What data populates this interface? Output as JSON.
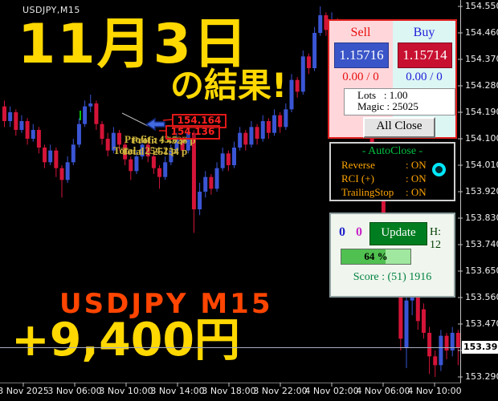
{
  "window": {
    "title": "USDJPY,M15"
  },
  "overlays": {
    "headline_line1": "11月3日",
    "headline_line2": "の結果!",
    "symbol_banner": "USDJPY M15",
    "profit_banner": "+9,400円",
    "profit_text_a": "Profit : 43.8 p",
    "profit_text_b": "Profit : 4328 p",
    "total_text_a": "Total : 254.2 p",
    "total_text_b": "Total : 25154 p",
    "order_price_upper": "154.164",
    "order_price_lower": "154.136"
  },
  "trade_panel": {
    "sell_label": "Sell",
    "buy_label": "Buy",
    "sell_price": "1.15716",
    "buy_price": "1.15714",
    "sell_stats": "0.00 / 0",
    "buy_stats": "0.00 / 0",
    "lots_rows": [
      {
        "label": "Lots",
        "value_text": "   : 1.00"
      },
      {
        "label": "Magic",
        "value_text": " : 25025"
      }
    ],
    "all_close_label": "All Close"
  },
  "autoclose_panel": {
    "title": "- AutoClose -",
    "rows": [
      {
        "label": "Reverse",
        "value_text": ": ON"
      },
      {
        "label": "RCI (+)",
        "value_text": ": ON"
      },
      {
        "label": "TrailingStop",
        "value_text": ": ON"
      }
    ]
  },
  "update_panel": {
    "count_blue": "0",
    "count_magenta": "0",
    "update_label": "Update",
    "h_label": "H: 12",
    "progress_text": "64 %",
    "progress_pct": 64,
    "score_text": "Score : (51) 1916"
  },
  "price_axis": {
    "labels": [
      "154.550",
      "154.460",
      "154.370",
      "154.280",
      "154.190",
      "154.100",
      "154.010",
      "153.920",
      "153.830",
      "153.740",
      "153.650",
      "153.560",
      "153.470",
      "153.380",
      "153.290"
    ],
    "current_price": "153.391"
  },
  "time_axis": {
    "labels": [
      "3 Nov 2025",
      "3 Nov 06:00",
      "3 Nov 10:00",
      "3 Nov 14:00",
      "3 Nov 18:00",
      "3 Nov 22:00",
      "4 Nov 02:00",
      "4 Nov 06:00",
      "4 Nov 10:00"
    ]
  },
  "chart": {
    "type": "candlestick",
    "price_top": 154.55,
    "price_step_per_33px": 0.09,
    "candles": [
      [
        154.21,
        154.23,
        154.14,
        154.16
      ],
      [
        154.16,
        154.21,
        154.14,
        154.19
      ],
      [
        154.19,
        154.2,
        154.11,
        154.13
      ],
      [
        154.13,
        154.18,
        154.12,
        154.16
      ],
      [
        154.16,
        154.17,
        154.08,
        154.1
      ],
      [
        154.1,
        154.15,
        154.09,
        154.13
      ],
      [
        154.13,
        154.14,
        154.05,
        154.07
      ],
      [
        154.07,
        154.08,
        154.0,
        154.02
      ],
      [
        154.02,
        154.08,
        154.01,
        154.06
      ],
      [
        154.06,
        154.07,
        153.97,
        154.0
      ],
      [
        154.0,
        154.01,
        153.9,
        153.96
      ],
      [
        153.96,
        154.04,
        153.95,
        154.02
      ],
      [
        154.02,
        154.1,
        154.01,
        154.08
      ],
      [
        154.08,
        154.17,
        154.07,
        154.15
      ],
      [
        154.15,
        154.23,
        154.14,
        154.21
      ],
      [
        154.21,
        154.25,
        154.19,
        154.22
      ],
      [
        154.22,
        154.23,
        154.13,
        154.15
      ],
      [
        154.15,
        154.16,
        154.08,
        154.1
      ],
      [
        154.1,
        154.12,
        154.04,
        154.06
      ],
      [
        154.06,
        154.14,
        154.05,
        154.12
      ],
      [
        154.12,
        154.13,
        154.06,
        154.08
      ],
      [
        154.08,
        154.09,
        154.01,
        154.03
      ],
      [
        154.03,
        154.04,
        153.96,
        153.99
      ],
      [
        153.99,
        154.06,
        153.98,
        154.04
      ],
      [
        154.04,
        154.1,
        154.03,
        154.08
      ],
      [
        154.08,
        154.09,
        154.02,
        154.04
      ],
      [
        154.04,
        154.05,
        153.98,
        154.0
      ],
      [
        154.0,
        154.01,
        153.93,
        153.97
      ],
      [
        153.97,
        154.04,
        153.96,
        154.02
      ],
      [
        154.02,
        154.08,
        154.01,
        154.06
      ],
      [
        154.06,
        154.12,
        154.05,
        154.1
      ],
      [
        154.1,
        154.11,
        154.04,
        154.06
      ],
      [
        154.06,
        154.14,
        154.05,
        154.12
      ],
      [
        154.12,
        154.13,
        153.78,
        153.86
      ],
      [
        153.86,
        153.95,
        153.84,
        153.92
      ],
      [
        153.92,
        153.99,
        153.9,
        153.97
      ],
      [
        153.97,
        153.98,
        153.91,
        153.93
      ],
      [
        153.93,
        154.02,
        153.92,
        154.0
      ],
      [
        154.0,
        154.07,
        153.99,
        154.05
      ],
      [
        154.05,
        154.06,
        153.99,
        154.01
      ],
      [
        154.01,
        154.09,
        154.0,
        154.07
      ],
      [
        154.07,
        154.14,
        154.06,
        154.12
      ],
      [
        154.12,
        154.13,
        154.06,
        154.08
      ],
      [
        154.08,
        154.16,
        154.07,
        154.14
      ],
      [
        154.14,
        154.15,
        154.08,
        154.1
      ],
      [
        154.1,
        154.18,
        154.09,
        154.16
      ],
      [
        154.16,
        154.17,
        154.1,
        154.12
      ],
      [
        154.12,
        154.2,
        154.11,
        154.18
      ],
      [
        154.18,
        154.19,
        154.12,
        154.14
      ],
      [
        154.14,
        154.22,
        154.13,
        154.2
      ],
      [
        154.2,
        154.32,
        154.19,
        154.3
      ],
      [
        154.3,
        154.31,
        154.24,
        154.26
      ],
      [
        154.26,
        154.4,
        154.25,
        154.38
      ],
      [
        154.38,
        154.39,
        154.32,
        154.34
      ],
      [
        154.34,
        154.48,
        154.33,
        154.46
      ],
      [
        154.46,
        154.55,
        154.45,
        154.52
      ],
      [
        154.52,
        154.53,
        154.45,
        154.47
      ],
      [
        154.47,
        154.53,
        154.46,
        154.5
      ],
      [
        154.5,
        154.51,
        154.42,
        154.44
      ],
      [
        154.44,
        154.45,
        154.33,
        154.35
      ],
      [
        154.35,
        154.36,
        154.26,
        154.28
      ],
      [
        154.28,
        154.34,
        154.27,
        154.32
      ],
      [
        154.32,
        154.33,
        154.2,
        154.22
      ],
      [
        154.22,
        154.23,
        154.1,
        154.12
      ],
      [
        154.12,
        154.13,
        154.0,
        154.02
      ],
      [
        154.02,
        154.03,
        153.9,
        153.92
      ],
      [
        153.92,
        153.93,
        153.8,
        153.82
      ],
      [
        153.82,
        153.83,
        153.7,
        153.72
      ],
      [
        153.72,
        153.73,
        153.6,
        153.62
      ],
      [
        153.62,
        153.63,
        153.38,
        153.42
      ],
      [
        153.39,
        153.57,
        153.32,
        153.55
      ],
      [
        153.55,
        153.59,
        153.5,
        153.57
      ],
      [
        153.57,
        153.58,
        153.45,
        153.48
      ],
      [
        153.52,
        153.54,
        153.42,
        153.44
      ],
      [
        153.44,
        153.46,
        153.3,
        153.36
      ],
      [
        153.36,
        153.38,
        153.29,
        153.33
      ],
      [
        153.33,
        153.45,
        153.31,
        153.43
      ],
      [
        153.43,
        153.44,
        153.35,
        153.38
      ],
      [
        153.38,
        153.46,
        153.36,
        153.44
      ],
      [
        153.44,
        153.45,
        153.33,
        153.39
      ]
    ]
  },
  "colors": {
    "bull": "#3A55D4",
    "bear": "#D41438",
    "accent_yellow": "#FFD800",
    "accent_orange": "#FF4500"
  }
}
